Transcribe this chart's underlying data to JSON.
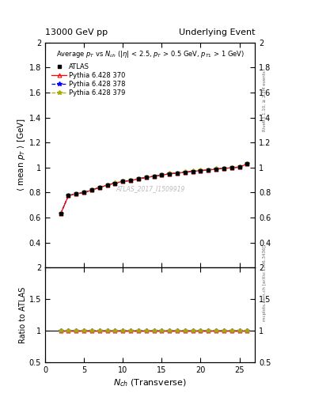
{
  "title_left": "13000 GeV pp",
  "title_right": "Underlying Event",
  "subplot_title": "Average $p_T$ vs $N_{ch}$ ($|\\eta|$ < 2.5, $p_T$ > 0.5 GeV, $p_{T1}$ > 1 GeV)",
  "ylabel_main": "$\\langle$ mean $p_T$ $\\rangle$ [GeV]",
  "ylabel_ratio": "Ratio to ATLAS",
  "xlabel": "$N_{ch}$ (Transverse)",
  "watermark": "ATLAS_2017_I1509919",
  "right_label_top": "Rivet 3.1.10, ≥ 2.2M events",
  "right_label_bottom": "mcplots.cern.ch [arXiv:1306.3436]",
  "ylim_main": [
    0.2,
    2.0
  ],
  "ylim_ratio": [
    0.5,
    2.0
  ],
  "xlim": [
    0,
    27
  ],
  "nch_data": [
    2,
    3,
    4,
    5,
    6,
    7,
    8,
    9,
    10,
    11,
    12,
    13,
    14,
    15,
    16,
    17,
    18,
    19,
    20,
    21,
    22,
    23,
    24,
    25,
    26
  ],
  "atlas_y": [
    0.63,
    0.775,
    0.79,
    0.8,
    0.82,
    0.84,
    0.86,
    0.875,
    0.89,
    0.895,
    0.91,
    0.92,
    0.93,
    0.94,
    0.95,
    0.955,
    0.963,
    0.97,
    0.975,
    0.98,
    0.988,
    0.993,
    0.998,
    1.003,
    1.03
  ],
  "atlas_yerr": [
    0.012,
    0.006,
    0.005,
    0.004,
    0.003,
    0.003,
    0.003,
    0.003,
    0.003,
    0.003,
    0.003,
    0.003,
    0.003,
    0.003,
    0.003,
    0.003,
    0.003,
    0.003,
    0.003,
    0.003,
    0.003,
    0.003,
    0.003,
    0.003,
    0.004
  ],
  "pythia370_y": [
    0.63,
    0.775,
    0.79,
    0.8,
    0.82,
    0.84,
    0.86,
    0.875,
    0.89,
    0.895,
    0.91,
    0.92,
    0.93,
    0.94,
    0.95,
    0.955,
    0.963,
    0.97,
    0.975,
    0.98,
    0.988,
    0.993,
    0.998,
    1.003,
    1.03
  ],
  "pythia378_y": [
    0.63,
    0.775,
    0.79,
    0.8,
    0.82,
    0.84,
    0.86,
    0.875,
    0.89,
    0.895,
    0.91,
    0.92,
    0.93,
    0.94,
    0.95,
    0.955,
    0.963,
    0.97,
    0.975,
    0.98,
    0.988,
    0.993,
    0.998,
    1.003,
    1.03
  ],
  "pythia379_y": [
    0.63,
    0.778,
    0.792,
    0.802,
    0.822,
    0.842,
    0.862,
    0.877,
    0.892,
    0.897,
    0.912,
    0.922,
    0.932,
    0.942,
    0.952,
    0.957,
    0.965,
    0.972,
    0.977,
    0.982,
    0.99,
    0.995,
    1.0,
    1.005,
    1.032
  ],
  "color_atlas": "#000000",
  "color_370": "#ff0000",
  "color_378": "#0000ff",
  "color_379": "#aaaa00",
  "yticks_main": [
    0.4,
    0.6,
    0.8,
    1.0,
    1.2,
    1.4,
    1.6,
    1.8,
    2.0
  ],
  "yticks_ratio": [
    0.5,
    1.0,
    1.5,
    2.0
  ],
  "xticks": [
    0,
    5,
    10,
    15,
    20,
    25
  ]
}
